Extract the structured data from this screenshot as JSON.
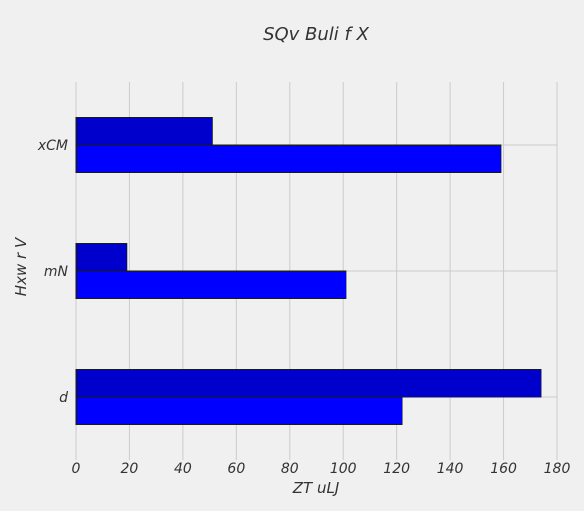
{
  "chart_data": {
    "type": "bar",
    "orientation": "horizontal",
    "title": "SQv Buli  f X",
    "xlabel": "ZT uLJ",
    "ylabel": "Hxw r V",
    "categories": [
      "d",
      "mN",
      "xCM"
    ],
    "series": [
      {
        "color": "#0000ff",
        "values": [
          122,
          101,
          159
        ]
      },
      {
        "color": "#0000cc",
        "values": [
          174,
          19,
          51
        ]
      }
    ],
    "xlim": [
      0,
      180
    ],
    "xticks": [
      0,
      20,
      40,
      60,
      80,
      100,
      120,
      140,
      160,
      180
    ],
    "xtick_labels": [
      "0",
      "20",
      "40",
      "60",
      "80",
      "100",
      "120",
      "140",
      "160",
      "180"
    ],
    "grid": true,
    "legend": "none",
    "background": "#f0f0f0"
  }
}
